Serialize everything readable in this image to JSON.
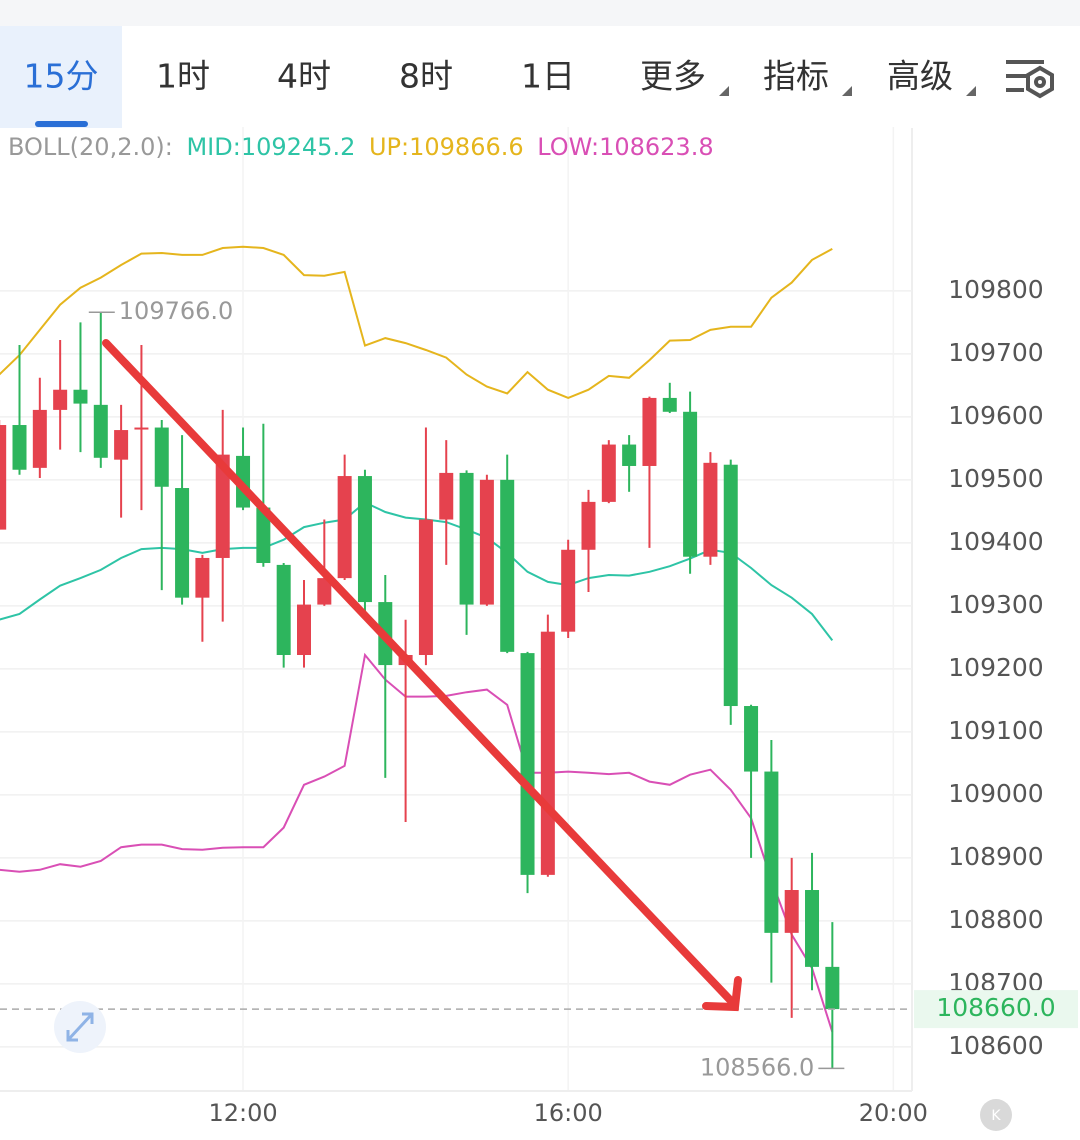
{
  "tabs": {
    "items": [
      "15分",
      "1时",
      "4时",
      "8时",
      "1日",
      "更多",
      "指标",
      "高级"
    ],
    "active": 0
  },
  "chart_data": {
    "type": "candlestick",
    "indicator": {
      "label": "BOLL(20,2.0):",
      "mid": "MID:109245.2",
      "up": "UP:109866.6",
      "low": "LOW:108623.8"
    },
    "x": [
      9,
      9.25,
      9.5,
      9.75,
      10,
      10.25,
      10.5,
      10.75,
      11,
      11.25,
      11.5,
      11.75,
      12,
      12.25,
      12.5,
      12.75,
      13,
      13.25,
      13.5,
      13.75,
      14,
      14.25,
      14.5,
      14.75,
      15,
      15.25,
      15.5,
      15.75,
      16,
      16.25,
      16.5,
      16.75,
      17,
      17.25,
      17.5,
      17.75,
      18,
      18.25,
      18.5,
      18.75,
      19,
      19.25
    ],
    "open": [
      109421,
      109587,
      109519,
      109611,
      109643,
      109619,
      109532,
      109580,
      109583,
      109487,
      109313,
      109376,
      109538,
      109456,
      109365,
      109222,
      109302,
      109344,
      109506,
      109306,
      109206,
      109222,
      109437,
      109511,
      109302,
      109500,
      109225,
      108873,
      109259,
      109389,
      109465,
      109556,
      109522,
      109630,
      109608,
      109378,
      109524,
      109141,
      109037,
      108781,
      108849,
      108727
    ],
    "high": [
      109595,
      109714,
      109662,
      109722,
      109750,
      109766,
      109619,
      109714,
      109595,
      109571,
      109381,
      109611,
      109583,
      109589,
      109368,
      109341,
      109437,
      109540,
      109516,
      109349,
      109278,
      109583,
      109563,
      109515,
      109508,
      109540,
      109227,
      109286,
      109405,
      109484,
      109563,
      109571,
      109632,
      109654,
      109640,
      109544,
      109532,
      109143,
      109087,
      108900,
      108908,
      108798
    ],
    "low": [
      109421,
      109508,
      109503,
      109548,
      109544,
      109519,
      109440,
      109452,
      109325,
      109302,
      109243,
      109275,
      109452,
      109362,
      109202,
      109202,
      109300,
      109341,
      109286,
      109027,
      108957,
      109206,
      109365,
      109254,
      109300,
      109225,
      108844,
      108870,
      109249,
      109322,
      109463,
      109481,
      109392,
      109606,
      109351,
      109365,
      109111,
      108900,
      108702,
      108646,
      108690,
      108566
    ],
    "close": [
      109587,
      109516,
      109611,
      109643,
      109621,
      109535,
      109579,
      109583,
      109489,
      109313,
      109376,
      109540,
      109456,
      109368,
      109222,
      109302,
      109344,
      109506,
      109306,
      109206,
      109222,
      109437,
      109511,
      109302,
      109500,
      109227,
      108873,
      109259,
      109389,
      109465,
      109556,
      109522,
      109630,
      109608,
      109378,
      109527,
      109141,
      109037,
      108781,
      108849,
      108727,
      108660
    ],
    "up_color": "#e5424e",
    "down_color": "#2db55d",
    "series": [
      {
        "name": "UP",
        "color": "#e5b51d",
        "values": [
          109667,
          109698,
          109738,
          109778,
          109805,
          109821,
          109841,
          109859,
          109860,
          109857,
          109857,
          109868,
          109870,
          109868,
          109857,
          109825,
          109824,
          109830,
          109713,
          109725,
          109717,
          109706,
          109694,
          109667,
          109648,
          109637,
          109671,
          109643,
          109630,
          109643,
          109665,
          109662,
          109690,
          109721,
          109722,
          109738,
          109743,
          109743,
          109789,
          109813,
          109849,
          109866.6
        ]
      },
      {
        "name": "MID",
        "color": "#2ec4a6",
        "values": [
          109278,
          109287,
          109310,
          109332,
          109344,
          109357,
          109376,
          109390,
          109392,
          109390,
          109384,
          109390,
          109392,
          109392,
          109405,
          109425,
          109432,
          109437,
          109464,
          109449,
          109440,
          109437,
          109433,
          109421,
          109408,
          109384,
          109354,
          109338,
          109333,
          109344,
          109349,
          109348,
          109354,
          109363,
          109375,
          109389,
          109384,
          109360,
          109333,
          109313,
          109287,
          109245.2
        ]
      },
      {
        "name": "LOW",
        "color": "#d94fb5",
        "values": [
          108881,
          108878,
          108881,
          108890,
          108886,
          108895,
          108917,
          108921,
          108921,
          108914,
          108913,
          108916,
          108917,
          108917,
          108948,
          109016,
          109029,
          109046,
          109222,
          109183,
          109156,
          109156,
          109157,
          109163,
          109167,
          109143,
          109035,
          109035,
          109037,
          109035,
          109033,
          109035,
          109021,
          109016,
          109032,
          109040,
          109008,
          108963,
          108865,
          108778,
          108725,
          108623.8
        ]
      }
    ],
    "annotations": [
      {
        "x": 10.25,
        "value": 109766,
        "label": "109766.0",
        "side": "right"
      },
      {
        "x": 19.25,
        "value": 108566,
        "label": "108566.0",
        "side": "left"
      }
    ],
    "last_price": {
      "value": 108660,
      "label": "108660.0"
    },
    "xlim": [
      9.01,
      20.23
    ],
    "xticks": [
      {
        "value": 12,
        "label": "12:00"
      },
      {
        "value": 16,
        "label": "16:00"
      },
      {
        "value": 20,
        "label": "20:00"
      }
    ],
    "ylim": [
      108530,
      110060
    ],
    "yticks": [
      108600,
      108700,
      108800,
      108900,
      109000,
      109100,
      109200,
      109300,
      109400,
      109500,
      109600,
      109700,
      109800
    ],
    "grid": true
  }
}
